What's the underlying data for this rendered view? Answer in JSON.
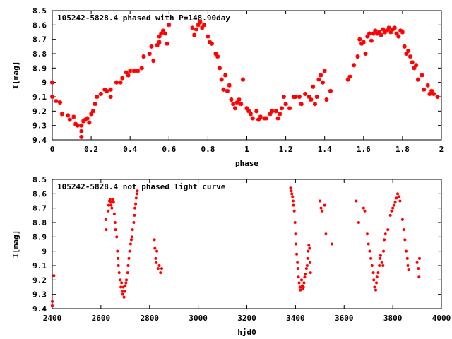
{
  "chart_data": [
    {
      "type": "scatter",
      "title": "105242-5828.4 phased with P=148.90day",
      "xlabel": "phase",
      "ylabel": "I[mag]",
      "xlim": [
        0,
        2
      ],
      "ylim": [
        9.4,
        8.5
      ],
      "y_reversed": true,
      "xticks": [
        "0",
        "0.2",
        "0.4",
        "0.6",
        "0.8",
        "1",
        "1.2",
        "1.4",
        "1.6",
        "1.8",
        "2"
      ],
      "yticks": [
        "8.5",
        "8.6",
        "8.7",
        "8.8",
        "8.9",
        "9",
        "9.1",
        "9.2",
        "9.3",
        "9.4"
      ],
      "marker_color": "#ff0000",
      "marker": "star",
      "points": [
        [
          0.0,
          9.0
        ],
        [
          0.0,
          9.1
        ],
        [
          0.02,
          9.13
        ],
        [
          0.04,
          9.14
        ],
        [
          0.05,
          9.22
        ],
        [
          0.08,
          9.23
        ],
        [
          0.09,
          9.26
        ],
        [
          0.11,
          9.24
        ],
        [
          0.12,
          9.29
        ],
        [
          0.13,
          9.3
        ],
        [
          0.15,
          9.3
        ],
        [
          0.15,
          9.34
        ],
        [
          0.15,
          9.38
        ],
        [
          0.16,
          9.27
        ],
        [
          0.17,
          9.26
        ],
        [
          0.18,
          9.25
        ],
        [
          0.19,
          9.28
        ],
        [
          0.2,
          9.22
        ],
        [
          0.21,
          9.2
        ],
        [
          0.22,
          9.15
        ],
        [
          0.23,
          9.1
        ],
        [
          0.25,
          9.08
        ],
        [
          0.27,
          9.05
        ],
        [
          0.28,
          9.06
        ],
        [
          0.3,
          9.05
        ],
        [
          0.3,
          9.1
        ],
        [
          0.33,
          9.0
        ],
        [
          0.35,
          9.0
        ],
        [
          0.36,
          8.97
        ],
        [
          0.38,
          8.93
        ],
        [
          0.39,
          8.95
        ],
        [
          0.4,
          8.92
        ],
        [
          0.42,
          8.92
        ],
        [
          0.44,
          8.92
        ],
        [
          0.46,
          8.9
        ],
        [
          0.47,
          8.82
        ],
        [
          0.5,
          8.8
        ],
        [
          0.51,
          8.75
        ],
        [
          0.52,
          8.85
        ],
        [
          0.54,
          8.74
        ],
        [
          0.55,
          8.72
        ],
        [
          0.55,
          8.68
        ],
        [
          0.56,
          8.66
        ],
        [
          0.57,
          8.64
        ],
        [
          0.58,
          8.66
        ],
        [
          0.59,
          8.73
        ],
        [
          0.6,
          8.6
        ],
        [
          0.72,
          8.62
        ],
        [
          0.73,
          8.67
        ],
        [
          0.74,
          8.63
        ],
        [
          0.75,
          8.6
        ],
        [
          0.76,
          8.58
        ],
        [
          0.77,
          8.62
        ],
        [
          0.78,
          8.6
        ],
        [
          0.8,
          8.68
        ],
        [
          0.81,
          8.72
        ],
        [
          0.82,
          8.73
        ],
        [
          0.84,
          8.8
        ],
        [
          0.85,
          8.82
        ],
        [
          0.86,
          8.9
        ],
        [
          0.87,
          8.98
        ],
        [
          0.88,
          9.05
        ],
        [
          0.89,
          8.95
        ],
        [
          0.9,
          9.06
        ],
        [
          0.91,
          9.02
        ],
        [
          0.92,
          9.12
        ],
        [
          0.93,
          9.15
        ],
        [
          0.94,
          9.18
        ],
        [
          0.95,
          9.14
        ],
        [
          0.96,
          9.12
        ],
        [
          0.97,
          9.15
        ],
        [
          0.98,
          8.98
        ],
        [
          1.0,
          9.18
        ],
        [
          1.01,
          9.2
        ],
        [
          1.02,
          9.22
        ],
        [
          1.03,
          9.25
        ],
        [
          1.05,
          9.2
        ],
        [
          1.06,
          9.26
        ],
        [
          1.07,
          9.24
        ],
        [
          1.09,
          9.25
        ],
        [
          1.1,
          9.25
        ],
        [
          1.12,
          9.22
        ],
        [
          1.13,
          9.2
        ],
        [
          1.15,
          9.2
        ],
        [
          1.16,
          9.25
        ],
        [
          1.17,
          9.22
        ],
        [
          1.18,
          9.18
        ],
        [
          1.19,
          9.1
        ],
        [
          1.2,
          9.15
        ],
        [
          1.22,
          9.18
        ],
        [
          1.24,
          9.1
        ],
        [
          1.25,
          9.1
        ],
        [
          1.27,
          9.1
        ],
        [
          1.28,
          9.15
        ],
        [
          1.3,
          9.08
        ],
        [
          1.32,
          9.1
        ],
        [
          1.33,
          9.12
        ],
        [
          1.34,
          9.03
        ],
        [
          1.35,
          9.15
        ],
        [
          1.36,
          9.1
        ],
        [
          1.37,
          8.98
        ],
        [
          1.38,
          8.95
        ],
        [
          1.39,
          9.0
        ],
        [
          1.4,
          8.92
        ],
        [
          1.41,
          9.12
        ],
        [
          1.43,
          9.06
        ],
        [
          1.52,
          8.98
        ],
        [
          1.53,
          8.96
        ],
        [
          1.55,
          8.88
        ],
        [
          1.57,
          8.82
        ],
        [
          1.58,
          8.7
        ],
        [
          1.59,
          8.73
        ],
        [
          1.6,
          8.72
        ],
        [
          1.61,
          8.8
        ],
        [
          1.62,
          8.68
        ],
        [
          1.63,
          8.66
        ],
        [
          1.64,
          8.71
        ],
        [
          1.65,
          8.66
        ],
        [
          1.66,
          8.64
        ],
        [
          1.67,
          8.66
        ],
        [
          1.68,
          8.65
        ],
        [
          1.69,
          8.67
        ],
        [
          1.7,
          8.63
        ],
        [
          1.71,
          8.65
        ],
        [
          1.72,
          8.64
        ],
        [
          1.73,
          8.62
        ],
        [
          1.74,
          8.65
        ],
        [
          1.75,
          8.63
        ],
        [
          1.76,
          8.62
        ],
        [
          1.77,
          8.66
        ],
        [
          1.78,
          8.68
        ],
        [
          1.79,
          8.64
        ],
        [
          1.8,
          8.65
        ],
        [
          1.81,
          8.75
        ],
        [
          1.82,
          8.8
        ],
        [
          1.83,
          8.78
        ],
        [
          1.84,
          8.82
        ],
        [
          1.85,
          8.86
        ],
        [
          1.86,
          8.9
        ],
        [
          1.87,
          8.88
        ],
        [
          1.88,
          8.98
        ],
        [
          1.9,
          8.95
        ],
        [
          1.91,
          9.05
        ],
        [
          1.93,
          9.02
        ],
        [
          1.94,
          9.08
        ],
        [
          1.95,
          9.06
        ],
        [
          1.96,
          9.08
        ],
        [
          1.98,
          9.1
        ]
      ]
    },
    {
      "type": "scatter",
      "title": "105242-5828.4 not phased light curve",
      "xlabel": "hjd0",
      "ylabel": "I[mag]",
      "xlim": [
        2400,
        4000
      ],
      "ylim": [
        9.4,
        8.5
      ],
      "y_reversed": true,
      "xticks": [
        "2400",
        "2600",
        "2800",
        "3000",
        "3200",
        "3400",
        "3600",
        "3800",
        "4000"
      ],
      "yticks": [
        "8.5",
        "8.6",
        "8.7",
        "8.8",
        "8.9",
        "9",
        "9.1",
        "9.2",
        "9.3",
        "9.4"
      ],
      "marker_color": "#ff0000",
      "marker": "dot",
      "points": [
        [
          2400,
          9.35
        ],
        [
          2400,
          9.38
        ],
        [
          2407,
          9.17
        ],
        [
          2620,
          8.78
        ],
        [
          2622,
          8.85
        ],
        [
          2630,
          8.72
        ],
        [
          2632,
          8.68
        ],
        [
          2635,
          8.65
        ],
        [
          2638,
          8.64
        ],
        [
          2640,
          8.66
        ],
        [
          2642,
          8.68
        ],
        [
          2645,
          8.7
        ],
        [
          2650,
          8.64
        ],
        [
          2652,
          8.66
        ],
        [
          2655,
          8.74
        ],
        [
          2658,
          8.8
        ],
        [
          2660,
          8.85
        ],
        [
          2665,
          8.9
        ],
        [
          2668,
          9.0
        ],
        [
          2670,
          9.05
        ],
        [
          2672,
          9.1
        ],
        [
          2675,
          9.15
        ],
        [
          2680,
          9.2
        ],
        [
          2682,
          9.25
        ],
        [
          2685,
          9.22
        ],
        [
          2688,
          9.28
        ],
        [
          2690,
          9.3
        ],
        [
          2692,
          9.25
        ],
        [
          2695,
          9.32
        ],
        [
          2698,
          9.28
        ],
        [
          2700,
          9.24
        ],
        [
          2703,
          9.22
        ],
        [
          2705,
          9.2
        ],
        [
          2710,
          9.15
        ],
        [
          2712,
          9.1
        ],
        [
          2715,
          9.05
        ],
        [
          2718,
          9.0
        ],
        [
          2722,
          8.95
        ],
        [
          2725,
          8.92
        ],
        [
          2728,
          8.9
        ],
        [
          2730,
          8.85
        ],
        [
          2735,
          8.8
        ],
        [
          2738,
          8.75
        ],
        [
          2740,
          8.7
        ],
        [
          2743,
          8.67
        ],
        [
          2745,
          8.63
        ],
        [
          2748,
          8.6
        ],
        [
          2750,
          8.58
        ],
        [
          2820,
          8.92
        ],
        [
          2822,
          8.98
        ],
        [
          2825,
          9.05
        ],
        [
          2828,
          9.08
        ],
        [
          2830,
          9.0
        ],
        [
          2835,
          9.12
        ],
        [
          2840,
          9.1
        ],
        [
          2845,
          9.15
        ],
        [
          2850,
          9.12
        ],
        [
          3380,
          8.56
        ],
        [
          3383,
          8.58
        ],
        [
          3385,
          8.6
        ],
        [
          3388,
          8.62
        ],
        [
          3390,
          8.65
        ],
        [
          3392,
          8.68
        ],
        [
          3395,
          8.72
        ],
        [
          3398,
          8.8
        ],
        [
          3400,
          8.88
        ],
        [
          3402,
          8.95
        ],
        [
          3405,
          9.02
        ],
        [
          3408,
          9.08
        ],
        [
          3410,
          9.12
        ],
        [
          3412,
          9.18
        ],
        [
          3415,
          9.22
        ],
        [
          3418,
          9.25
        ],
        [
          3420,
          9.27
        ],
        [
          3423,
          9.25
        ],
        [
          3425,
          9.2
        ],
        [
          3428,
          9.24
        ],
        [
          3430,
          9.26
        ],
        [
          3433,
          9.25
        ],
        [
          3435,
          9.22
        ],
        [
          3438,
          9.18
        ],
        [
          3440,
          9.16
        ],
        [
          3445,
          9.12
        ],
        [
          3448,
          9.1
        ],
        [
          3450,
          9.05
        ],
        [
          3452,
          9.0
        ],
        [
          3455,
          8.96
        ],
        [
          3458,
          8.98
        ],
        [
          3460,
          9.08
        ],
        [
          3462,
          9.15
        ],
        [
          3500,
          8.65
        ],
        [
          3505,
          8.7
        ],
        [
          3510,
          8.72
        ],
        [
          3520,
          8.68
        ],
        [
          3525,
          8.88
        ],
        [
          3550,
          8.95
        ],
        [
          3650,
          8.65
        ],
        [
          3660,
          8.8
        ],
        [
          3680,
          8.7
        ],
        [
          3685,
          8.72
        ],
        [
          3695,
          8.88
        ],
        [
          3700,
          8.95
        ],
        [
          3705,
          9.0
        ],
        [
          3710,
          9.05
        ],
        [
          3715,
          9.1
        ],
        [
          3720,
          9.15
        ],
        [
          3722,
          9.2
        ],
        [
          3725,
          9.25
        ],
        [
          3730,
          9.27
        ],
        [
          3733,
          9.22
        ],
        [
          3735,
          9.18
        ],
        [
          3740,
          9.15
        ],
        [
          3745,
          9.1
        ],
        [
          3748,
          9.05
        ],
        [
          3750,
          9.03
        ],
        [
          3755,
          9.08
        ],
        [
          3760,
          9.1
        ],
        [
          3762,
          9.0
        ],
        [
          3765,
          8.92
        ],
        [
          3770,
          8.88
        ],
        [
          3780,
          8.85
        ],
        [
          3790,
          8.75
        ],
        [
          3795,
          8.72
        ],
        [
          3800,
          8.7
        ],
        [
          3805,
          8.68
        ],
        [
          3810,
          8.66
        ],
        [
          3815,
          8.63
        ],
        [
          3820,
          8.6
        ],
        [
          3825,
          8.62
        ],
        [
          3830,
          8.65
        ],
        [
          3840,
          8.78
        ],
        [
          3845,
          8.85
        ],
        [
          3850,
          8.92
        ],
        [
          3855,
          9.0
        ],
        [
          3860,
          9.05
        ],
        [
          3862,
          9.1
        ],
        [
          3865,
          9.13
        ],
        [
          3900,
          9.08
        ],
        [
          3905,
          9.12
        ],
        [
          3908,
          9.18
        ],
        [
          3910,
          9.05
        ]
      ]
    }
  ]
}
